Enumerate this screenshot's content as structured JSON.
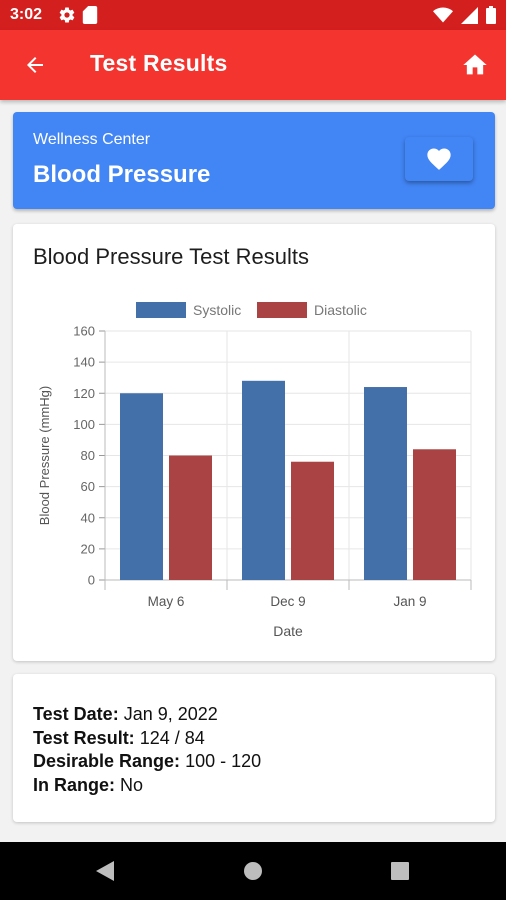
{
  "status_bar": {
    "time": "3:02",
    "icons": [
      "gear-icon",
      "sd-card-icon",
      "wifi-icon",
      "signal-icon",
      "battery-icon"
    ]
  },
  "app_bar": {
    "title": "Test Results",
    "back_icon": "arrow-back-icon",
    "home_icon": "home-icon",
    "background_color": "#f4342e"
  },
  "header_card": {
    "subtitle": "Wellness Center",
    "title": "Blood Pressure",
    "favorite_icon": "heart-icon",
    "background_color": "#4285f4"
  },
  "chart_card": {
    "title": "Blood Pressure Test Results"
  },
  "chart_data": {
    "type": "bar",
    "categories": [
      "May 6",
      "Dec 9",
      "Jan 9"
    ],
    "series": [
      {
        "name": "Systolic",
        "color": "#4470aa",
        "values": [
          120,
          128,
          124
        ]
      },
      {
        "name": "Diastolic",
        "color": "#aa4444",
        "values": [
          80,
          76,
          84
        ]
      }
    ],
    "xlabel": "Date",
    "ylabel": "Blood Pressure (mmHg)",
    "ylim": [
      0,
      160
    ],
    "yticks": [
      "0",
      "20",
      "40",
      "60",
      "80",
      "100",
      "120",
      "140",
      "160"
    ],
    "legend_position": "top-center",
    "grid": true
  },
  "details": {
    "test_date_label": "Test Date:",
    "test_date_value": "Jan 9, 2022",
    "test_result_label": "Test Result:",
    "test_result_value": "124 / 84",
    "desirable_range_label": "Desirable Range:",
    "desirable_range_value": "100 - 120",
    "in_range_label": "In Range:",
    "in_range_value": "No"
  },
  "nav_bar": {
    "icons": [
      "back-triangle-icon",
      "home-circle-icon",
      "recents-square-icon"
    ]
  }
}
